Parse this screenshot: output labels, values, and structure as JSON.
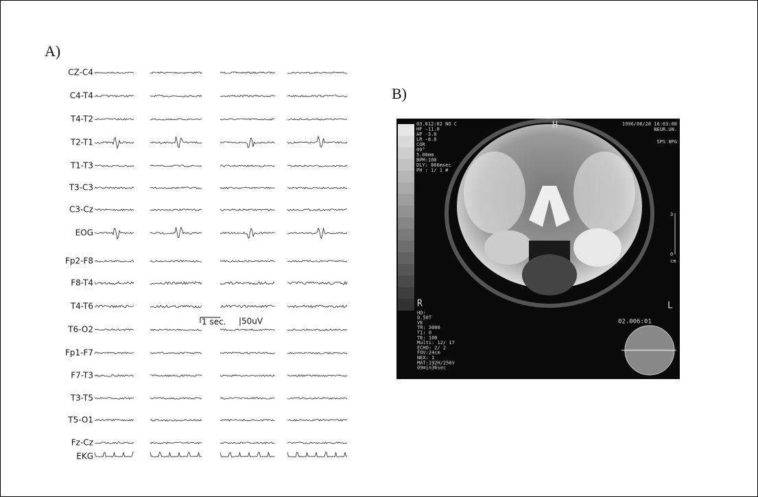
{
  "panel_a": {
    "label": "A)",
    "channels": [
      "CZ-C4",
      "C4-T4",
      "T4-T2",
      "T2-T1",
      "T1-T3",
      "T3-C3",
      "C3-Cz",
      "EOG",
      "Fp2-F8",
      "F8-T4",
      "T4-T6",
      "T6-O2",
      "Fp1-F7",
      "F7-T3",
      "T3-T5",
      "T5-O1",
      "Fz-Cz",
      "EKG"
    ],
    "scale_time": "1 sec.",
    "scale_amplitude": "50uV"
  },
  "panel_b": {
    "label": "B)",
    "top_left": [
      "03.012:02 NO C",
      "HF -11.0",
      "AP -3.0",
      "LR -8.0",
      "COR",
      "00°",
      "5.00mm",
      "BPM:100",
      "DLY: 866msec",
      "PH : 1/ 1 #"
    ],
    "top_center": "H",
    "top_right": [
      "1996/08/28 16:03:08",
      "NEUR.UN.",
      "SPS 8PG"
    ],
    "ruler": [
      "3",
      "0",
      "cm"
    ],
    "side_right": "L",
    "series_number": "02.006:01",
    "bottom_left": [
      "R",
      "HD:",
      "0.50T",
      "VE",
      "TR: 3000",
      "TI: 0",
      "TE: 100",
      "Multi: 12/ 17",
      "ECHO: 2/ 2",
      "FOV:24cm",
      "NEX: 1",
      "MAT:192H/256V",
      "09min36sec"
    ]
  }
}
